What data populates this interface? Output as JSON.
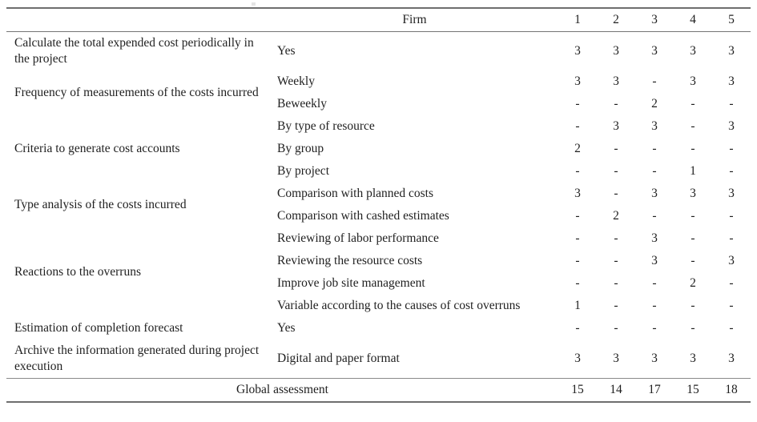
{
  "table": {
    "header": {
      "firm_label": "Firm",
      "firm_columns": [
        "1",
        "2",
        "3",
        "4",
        "5"
      ]
    },
    "groups": [
      {
        "category": "Calculate the total expended cost periodically in the project",
        "rows": [
          {
            "label": "Yes",
            "values": [
              "3",
              "3",
              "3",
              "3",
              "3"
            ]
          }
        ]
      },
      {
        "category": "Frequency of measurements of the costs incurred",
        "rows": [
          {
            "label": "Weekly",
            "values": [
              "3",
              "3",
              "-",
              "3",
              "3"
            ]
          },
          {
            "label": "Beweekly",
            "values": [
              "-",
              "-",
              "2",
              "-",
              "-"
            ]
          }
        ]
      },
      {
        "category": "Criteria to generate cost accounts",
        "rows": [
          {
            "label": "By type of resource",
            "values": [
              "-",
              "3",
              "3",
              "-",
              "3"
            ]
          },
          {
            "label": "By group",
            "values": [
              "2",
              "-",
              "-",
              "-",
              "-"
            ]
          },
          {
            "label": "By project",
            "values": [
              "-",
              "-",
              "-",
              "1",
              "-"
            ]
          }
        ]
      },
      {
        "category": "Type analysis of the costs incurred",
        "rows": [
          {
            "label": "Comparison with planned costs",
            "values": [
              "3",
              "-",
              "3",
              "3",
              "3"
            ]
          },
          {
            "label": "Comparison with cashed estimates",
            "values": [
              "-",
              "2",
              "-",
              "-",
              "-"
            ]
          }
        ]
      },
      {
        "category": "Reactions to the overruns",
        "rows": [
          {
            "label": "Reviewing of labor performance",
            "values": [
              "-",
              "-",
              "3",
              "-",
              "-"
            ]
          },
          {
            "label": "Reviewing the resource costs",
            "values": [
              "-",
              "-",
              "3",
              "-",
              "3"
            ]
          },
          {
            "label": "Improve job site management",
            "values": [
              "-",
              "-",
              "-",
              "2",
              "-"
            ]
          },
          {
            "label": "Variable according to the causes of cost overruns",
            "values": [
              "1",
              "-",
              "-",
              "-",
              "-"
            ]
          }
        ]
      },
      {
        "category": "Estimation of completion forecast",
        "rows": [
          {
            "label": "Yes",
            "values": [
              "-",
              "-",
              "-",
              "-",
              "-"
            ]
          }
        ]
      },
      {
        "category": "Archive the information generated during project execution",
        "rows": [
          {
            "label": "Digital and paper format",
            "values": [
              "3",
              "3",
              "3",
              "3",
              "3"
            ]
          }
        ]
      }
    ],
    "footer": {
      "label": "Global assessment",
      "values": [
        "15",
        "14",
        "17",
        "15",
        "18"
      ]
    }
  },
  "colors": {
    "rule": "#6e6e6e",
    "text": "#1f1f1f",
    "background": "#ffffff"
  }
}
